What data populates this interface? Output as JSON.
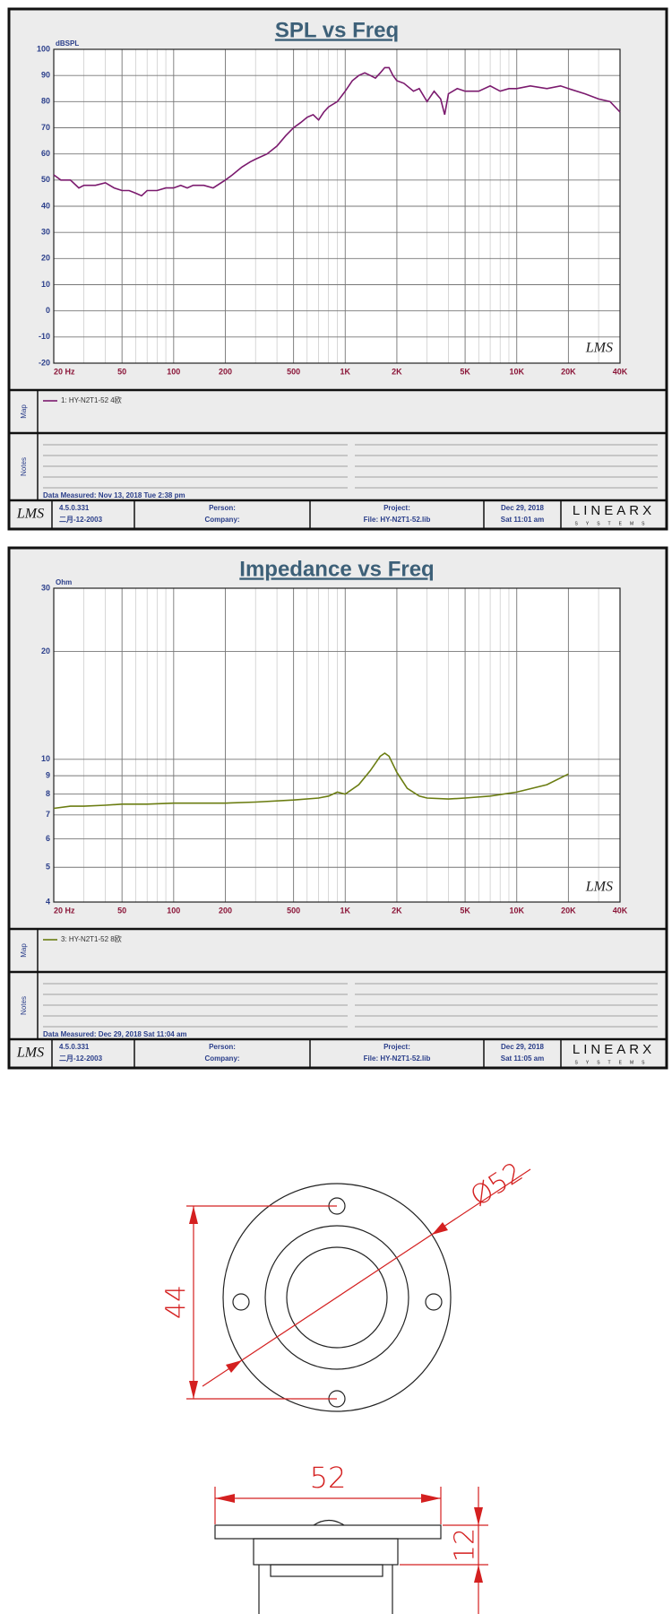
{
  "chart_data": [
    {
      "type": "line",
      "title": "SPL vs Freq",
      "y_label": "dBSPL",
      "xscale": "log",
      "grid": true,
      "minor_grid": true,
      "x": [
        20,
        22,
        25,
        28,
        30,
        35,
        40,
        45,
        50,
        55,
        60,
        65,
        70,
        80,
        90,
        100,
        110,
        120,
        130,
        150,
        170,
        200,
        220,
        250,
        280,
        300,
        350,
        400,
        450,
        500,
        550,
        600,
        650,
        700,
        750,
        800,
        900,
        1000,
        1100,
        1200,
        1300,
        1400,
        1500,
        1600,
        1700,
        1800,
        1900,
        2000,
        2200,
        2500,
        2700,
        3000,
        3300,
        3600,
        3800,
        4000,
        4500,
        5000,
        6000,
        7000,
        8000,
        9000,
        10000,
        12000,
        15000,
        18000,
        20000,
        25000,
        30000,
        35000,
        40000
      ],
      "series": [
        {
          "name": "1: HY-N2T1-52 4欧",
          "color": "#7b1a6e",
          "values": [
            52,
            50,
            50,
            47,
            48,
            48,
            49,
            47,
            46,
            46,
            45,
            44,
            46,
            46,
            47,
            47,
            48,
            47,
            48,
            48,
            47,
            50,
            52,
            55,
            57,
            58,
            60,
            63,
            67,
            70,
            72,
            74,
            75,
            73,
            76,
            78,
            80,
            84,
            88,
            90,
            91,
            90,
            89,
            91,
            93,
            93,
            90,
            88,
            87,
            84,
            85,
            80,
            84,
            81,
            75,
            83,
            85,
            84,
            84,
            86,
            84,
            85,
            85,
            86,
            85,
            86,
            85,
            83,
            81,
            80,
            76
          ]
        }
      ],
      "xlim": [
        20,
        40000
      ],
      "ylim": [
        -20,
        100
      ],
      "xticks": [
        {
          "value": 20,
          "label": "20 Hz"
        },
        50,
        100,
        200,
        500,
        {
          "value": 1000,
          "label": "1K"
        },
        {
          "value": 2000,
          "label": "2K"
        },
        {
          "value": 5000,
          "label": "5K"
        },
        {
          "value": 10000,
          "label": "10K"
        },
        {
          "value": 20000,
          "label": "20K"
        },
        {
          "value": 40000,
          "label": "40K"
        }
      ],
      "yticks": [
        -20,
        -10,
        0,
        10,
        20,
        30,
        40,
        50,
        60,
        70,
        80,
        90,
        100
      ]
    },
    {
      "type": "line",
      "title": "Impedance vs Freq",
      "y_label": "Ohm",
      "xscale": "log",
      "yscale": "log",
      "grid": true,
      "minor_grid": true,
      "x": [
        20,
        25,
        30,
        40,
        50,
        70,
        100,
        200,
        300,
        500,
        700,
        800,
        900,
        1000,
        1200,
        1400,
        1600,
        1700,
        1800,
        2000,
        2300,
        2700,
        3000,
        4000,
        5000,
        7000,
        10000,
        15000,
        20000
      ],
      "series": [
        {
          "name": "3: HY-N2T1-52 8欧",
          "color": "#6b7d12",
          "values": [
            7.3,
            7.4,
            7.4,
            7.45,
            7.5,
            7.5,
            7.55,
            7.55,
            7.6,
            7.7,
            7.8,
            7.9,
            8.1,
            8.0,
            8.5,
            9.3,
            10.2,
            10.4,
            10.2,
            9.2,
            8.3,
            7.9,
            7.8,
            7.75,
            7.8,
            7.9,
            8.1,
            8.5,
            9.1
          ]
        }
      ],
      "xlim": [
        20,
        40000
      ],
      "ylim": [
        4,
        30
      ],
      "xticks": [
        {
          "value": 20,
          "label": "20 Hz"
        },
        50,
        100,
        200,
        500,
        {
          "value": 1000,
          "label": "1K"
        },
        {
          "value": 2000,
          "label": "2K"
        },
        {
          "value": 5000,
          "label": "5K"
        },
        {
          "value": 10000,
          "label": "10K"
        },
        {
          "value": 20000,
          "label": "20K"
        },
        {
          "value": 40000,
          "label": "40K"
        }
      ],
      "yticks": [
        4,
        5,
        6,
        7,
        8,
        9,
        10,
        20,
        30
      ]
    }
  ],
  "panels": [
    {
      "watermark": "LMS",
      "map_label": "Map",
      "notes_label": "Notes",
      "measured": "Data Measured: Nov 13, 2018  Tue  2:38 pm",
      "footer": {
        "logo": "LMS",
        "version": "4.5.0.331",
        "date_code": "二月-12-2003",
        "person": "Person:",
        "company": "Company:",
        "project": "Project:",
        "file": "File: HY-N2T1-52.lib",
        "date": "Dec 29, 2018",
        "time": "Sat 11:01 am",
        "brand": "LINEARX",
        "brand_sub": "SYSTEMS"
      }
    },
    {
      "watermark": "LMS",
      "map_label": "Map",
      "notes_label": "Notes",
      "measured": "Data Measured: Dec 29, 2018  Sat 11:04 am",
      "footer": {
        "logo": "LMS",
        "version": "4.5.0.331",
        "date_code": "二月-12-2003",
        "person": "Person:",
        "company": "Company:",
        "project": "Project:",
        "file": "File: HY-N2T1-52.lib",
        "date": "Dec 29, 2018",
        "time": "Sat 11:05 am",
        "brand": "LINEARX",
        "brand_sub": "SYSTEMS"
      }
    }
  ],
  "drawing": {
    "top_view": {
      "diameter": "Ø52",
      "hole_spacing": "44"
    },
    "side_view": {
      "width": "52",
      "height": "12"
    }
  }
}
